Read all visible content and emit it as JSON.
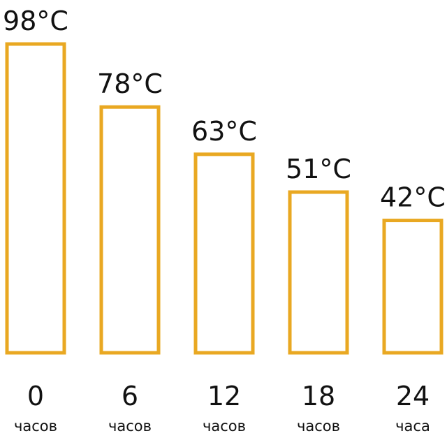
{
  "chart_data": {
    "type": "bar",
    "categories": [
      [
        "0",
        "часов"
      ],
      [
        "6",
        "часов"
      ],
      [
        "12",
        "часов"
      ],
      [
        "18",
        "часов"
      ],
      [
        "24",
        "часа"
      ]
    ],
    "values": [
      98,
      78,
      63,
      51,
      42
    ],
    "value_labels": [
      "98°C",
      "78°C",
      "63°C",
      "51°C",
      "42°C"
    ],
    "color": "#e9a822"
  }
}
